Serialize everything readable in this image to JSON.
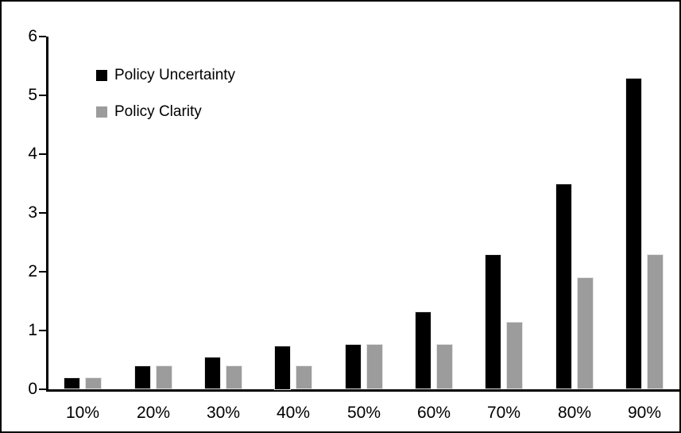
{
  "chart_data": {
    "type": "bar",
    "categories": [
      "10%",
      "20%",
      "30%",
      "40%",
      "50%",
      "60%",
      "70%",
      "80%",
      "90%"
    ],
    "series": [
      {
        "name": "Policy Uncertainty",
        "color": "#000000",
        "values": [
          0.2,
          0.4,
          0.55,
          0.75,
          0.77,
          1.33,
          2.3,
          3.5,
          5.3
        ]
      },
      {
        "name": "Policy Clarity",
        "color": "#9c9c9c",
        "values": [
          0.2,
          0.4,
          0.4,
          0.4,
          0.77,
          0.77,
          1.15,
          1.9,
          2.3
        ]
      }
    ],
    "title": "",
    "xlabel": "",
    "ylabel": "",
    "ylim": [
      0,
      6
    ],
    "yticks": [
      "0",
      "1",
      "2",
      "3",
      "4",
      "5",
      "6"
    ],
    "grid": false,
    "legend_position": "upper-left",
    "axis_color": "#000000",
    "background_color": "#ffffff",
    "frame_border_color": "#000000"
  }
}
